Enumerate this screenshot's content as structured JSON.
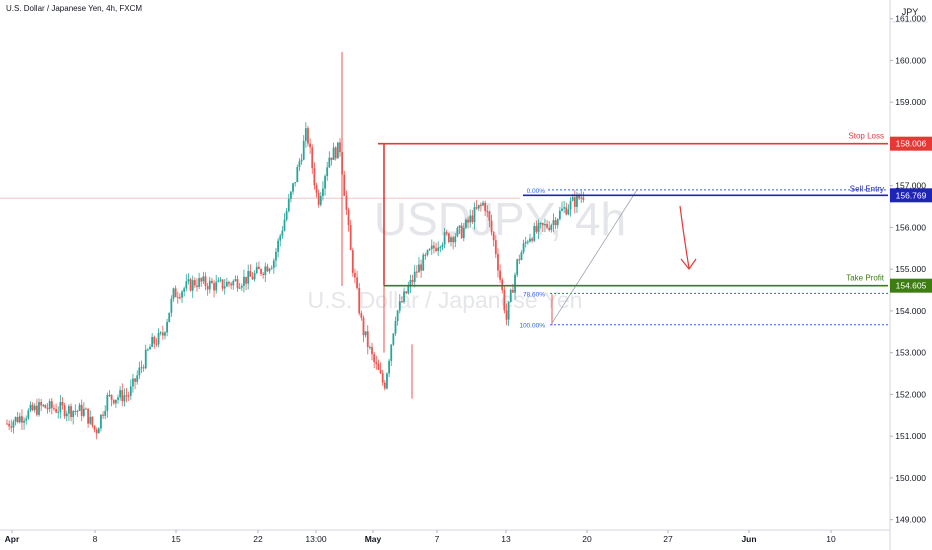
{
  "header": {
    "symbol_title": "U.S. Dollar / Japanese Yen, 4h, FXCM"
  },
  "watermark": {
    "ticker": "USDJPY, 4h",
    "name": "U.S. Dollar / Japanese Yen"
  },
  "price_axis": {
    "currency": "JPY",
    "ticks": [
      "149.000",
      "150.000",
      "151.000",
      "152.000",
      "153.000",
      "154.000",
      "155.000",
      "156.000",
      "157.000",
      "158.000",
      "159.000",
      "160.000",
      "161.000"
    ]
  },
  "time_axis": {
    "labels": [
      "Apr",
      "8",
      "15",
      "22",
      "13:00",
      "May",
      "7",
      "13",
      "20",
      "27",
      "Jun",
      "10"
    ]
  },
  "colors": {
    "up": "#26a69a",
    "down": "#ef5350",
    "stop_loss": "#e53935",
    "sell_entry": "#1e24b4",
    "take_profit": "#3d7d12",
    "fib": "#2962ff",
    "arrow": "#e53935",
    "grid_text": "#131722"
  },
  "annotations": {
    "stop_loss": {
      "label": "Stop Loss",
      "price": 158.006,
      "price_label": "158.006"
    },
    "sell_entry": {
      "label": "Sell Entry",
      "price": 156.769,
      "price_label": "156.769"
    },
    "take_profit": {
      "label": "Take Profit",
      "price": 154.605,
      "price_label": "154.605"
    },
    "fib_levels": [
      {
        "label": "0.00%",
        "price": 156.9
      },
      {
        "label": "78.60%",
        "price": 154.42
      },
      {
        "label": "100.00%",
        "price": 153.67
      }
    ],
    "arrow_direction": "down"
  },
  "chart_data": {
    "type": "candlestick",
    "title": "U.S. Dollar / Japanese Yen, 4h, FXCM",
    "ylim": [
      148.8,
      161.4
    ],
    "x_ticks": [
      "Apr",
      "8",
      "15",
      "22",
      "13:00",
      "May",
      "7",
      "13",
      "20",
      "27",
      "Jun",
      "10"
    ],
    "y_ticks": [
      149,
      150,
      151,
      152,
      153,
      154,
      155,
      156,
      157,
      158,
      159,
      160,
      161
    ],
    "series_close_path": [
      [
        "Apr 1",
        151.3
      ],
      [
        "Apr 4",
        151.7
      ],
      [
        "Apr 8",
        151.6
      ],
      [
        "Apr 9",
        151.1
      ],
      [
        "Apr 10",
        151.9
      ],
      [
        "Apr 12",
        152.0
      ],
      [
        "Apr 14",
        153.2
      ],
      [
        "Apr 15",
        153.4
      ],
      [
        "Apr 16",
        154.4
      ],
      [
        "Apr 18",
        154.7
      ],
      [
        "Apr 20",
        154.6
      ],
      [
        "Apr 23",
        154.8
      ],
      [
        "Apr 25",
        155.2
      ],
      [
        "Apr 26",
        156.2
      ],
      [
        "Apr 27",
        157.2
      ],
      [
        "Apr 28",
        158.3
      ],
      [
        "Apr 29",
        156.6
      ],
      [
        "Apr 30",
        157.7
      ],
      [
        "May 1",
        157.9
      ],
      [
        "May 2",
        155.3
      ],
      [
        "May 3",
        153.6
      ],
      [
        "May 4",
        152.8
      ],
      [
        "May 5",
        152.2
      ],
      [
        "May 6",
        153.9
      ],
      [
        "May 8",
        155.0
      ],
      [
        "May 10",
        155.7
      ],
      [
        "May 12",
        155.9
      ],
      [
        "May 13",
        156.3
      ],
      [
        "May 14",
        156.6
      ],
      [
        "May 15",
        155.5
      ],
      [
        "May 16",
        153.8
      ],
      [
        "May 17",
        155.2
      ],
      [
        "May 18",
        155.8
      ],
      [
        "May 20",
        156.1
      ],
      [
        "May 21",
        156.4
      ],
      [
        "May 22",
        156.6
      ],
      [
        "May 23",
        156.8
      ]
    ]
  }
}
